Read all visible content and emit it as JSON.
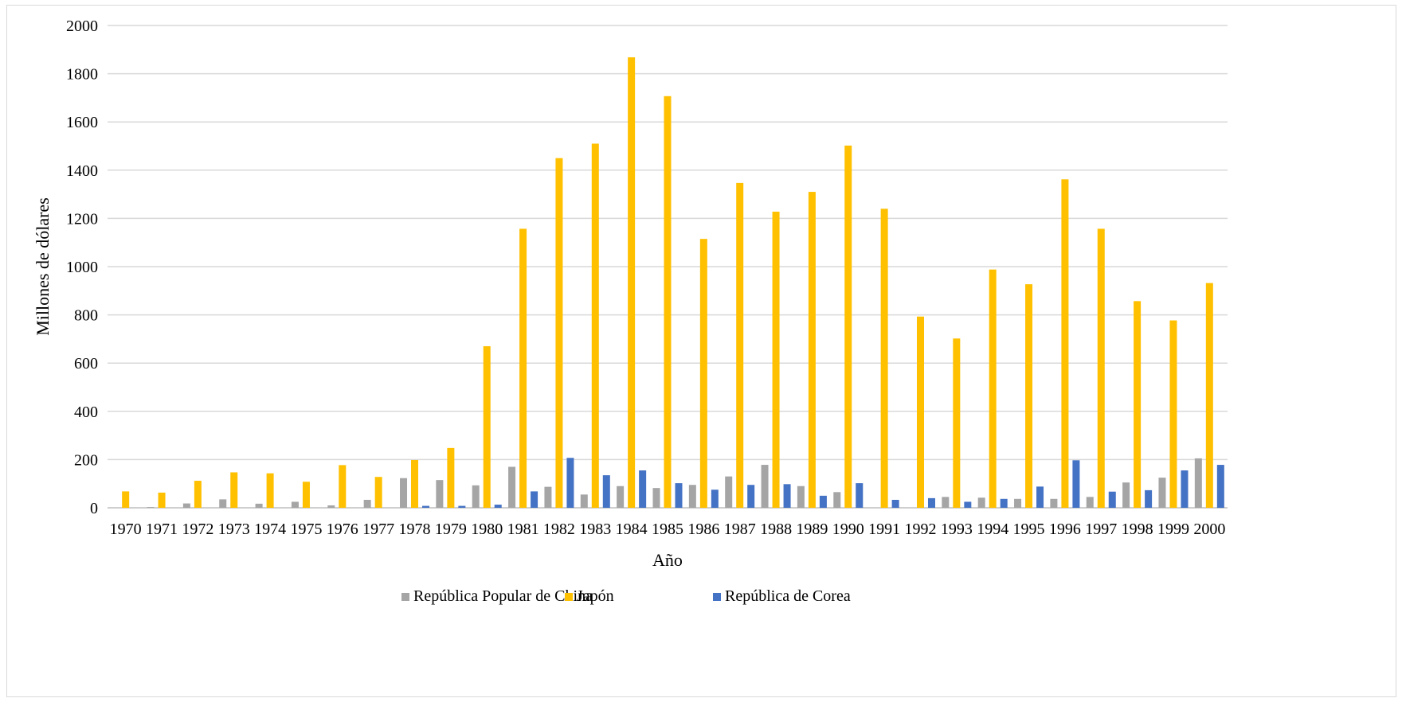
{
  "chart_data": {
    "type": "bar",
    "title": "",
    "xlabel": "Año",
    "ylabel": "Millones de dólares",
    "ylim": [
      0,
      2000
    ],
    "yticks": [
      0,
      200,
      400,
      600,
      800,
      1000,
      1200,
      1400,
      1600,
      1800,
      2000
    ],
    "grid": true,
    "legend_position": "bottom",
    "categories": [
      "1970",
      "1971",
      "1972",
      "1973",
      "1974",
      "1975",
      "1976",
      "1977",
      "1978",
      "1979",
      "1980",
      "1981",
      "1982",
      "1983",
      "1984",
      "1985",
      "1986",
      "1987",
      "1988",
      "1989",
      "1990",
      "1991",
      "1992",
      "1993",
      "1994",
      "1995",
      "1996",
      "1997",
      "1998",
      "1999",
      "2000"
    ],
    "series": [
      {
        "name": "República Popular de China",
        "color": "#a5a5a5",
        "values": [
          0,
          3,
          18,
          35,
          17,
          25,
          10,
          33,
          123,
          115,
          93,
          170,
          87,
          55,
          90,
          82,
          95,
          130,
          178,
          90,
          65,
          0,
          0,
          45,
          42,
          37,
          37,
          45,
          105,
          125,
          205
        ]
      },
      {
        "name": "Japón",
        "color": "#ffc000",
        "values": [
          68,
          63,
          112,
          147,
          143,
          108,
          177,
          128,
          198,
          248,
          670,
          1157,
          1450,
          1510,
          1868,
          1707,
          1115,
          1347,
          1228,
          1310,
          1502,
          1240,
          793,
          702,
          988,
          927,
          1362,
          1157,
          857,
          777,
          932
        ]
      },
      {
        "name": "República de Corea",
        "color": "#4472c4",
        "values": [
          0,
          0,
          0,
          0,
          0,
          0,
          0,
          0,
          8,
          8,
          13,
          68,
          207,
          135,
          155,
          102,
          75,
          95,
          98,
          50,
          102,
          33,
          40,
          25,
          37,
          88,
          197,
          67,
          73,
          155,
          178
        ]
      }
    ]
  }
}
